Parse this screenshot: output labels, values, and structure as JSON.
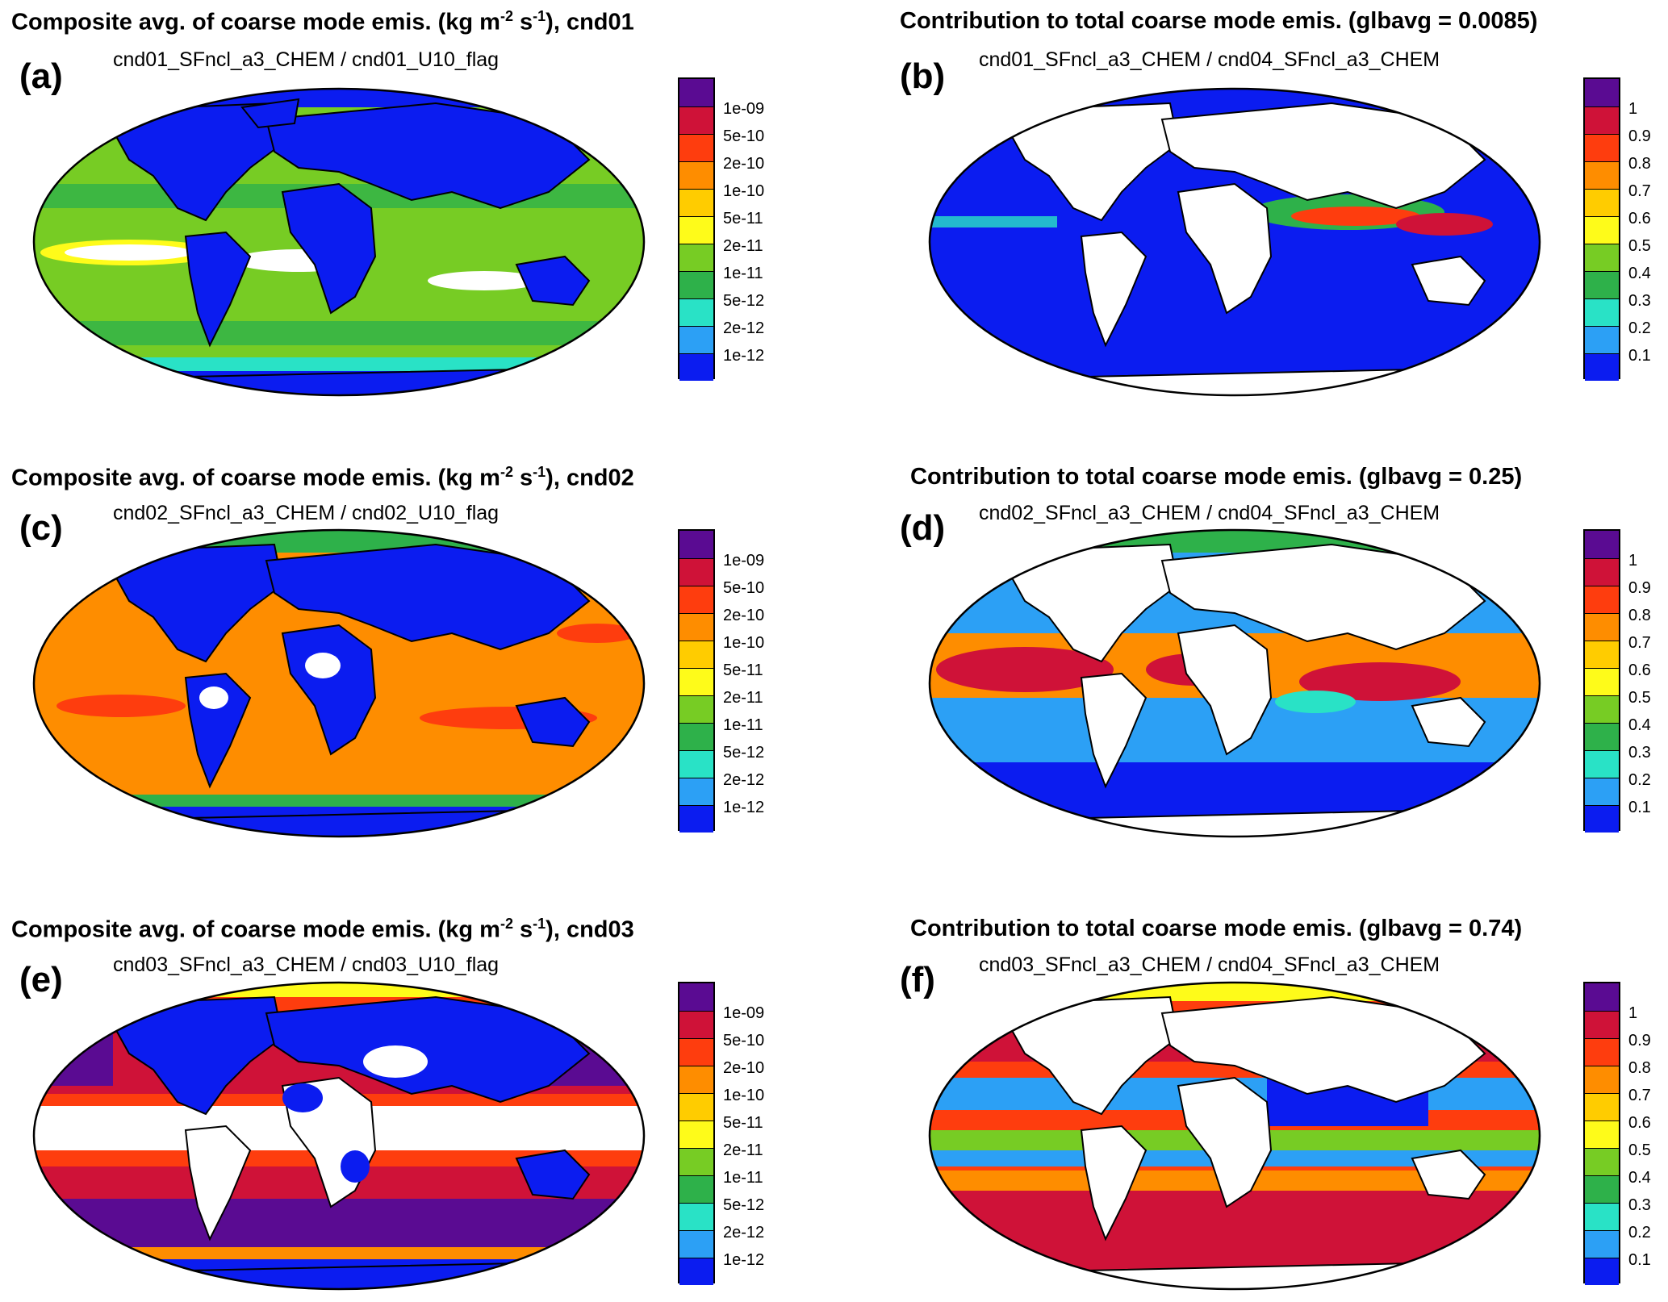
{
  "colors": {
    "ocean_blue": "#0b1cf0",
    "land_blue": "#0b1cf0",
    "light_blue": "#2ca0f5",
    "cyan": "#29e2c6",
    "green_dark": "#2eb14a",
    "green": "#77cc24",
    "yellow": "#fefb1a",
    "gold": "#ffcc00",
    "orange": "#fe8d00",
    "red_orange": "#fe3d0e",
    "red": "#cf1238",
    "purple": "#5a0b92",
    "white": "#ffffff"
  },
  "colorbar_left": {
    "colors": [
      "#0b1cf0",
      "#2ca0f5",
      "#29e2c6",
      "#2eb14a",
      "#77cc24",
      "#fefb1a",
      "#ffcc00",
      "#fe8d00",
      "#fe3d0e",
      "#cf1238",
      "#5a0b92"
    ],
    "labels": [
      "1e-12",
      "2e-12",
      "5e-12",
      "1e-11",
      "2e-11",
      "5e-11",
      "1e-10",
      "2e-10",
      "5e-10",
      "1e-09"
    ]
  },
  "colorbar_right": {
    "colors": [
      "#0b1cf0",
      "#2ca0f5",
      "#29e2c6",
      "#2eb14a",
      "#77cc24",
      "#fefb1a",
      "#ffcc00",
      "#fe8d00",
      "#fe3d0e",
      "#cf1238",
      "#5a0b92"
    ],
    "labels": [
      "0.1",
      "0.2",
      "0.3",
      "0.4",
      "0.5",
      "0.6",
      "0.7",
      "0.8",
      "0.9",
      "1"
    ]
  },
  "panels": [
    {
      "id": "a",
      "label": "(a)",
      "title_prefix": "Composite avg. of coarse mode emis. (kg m",
      "title_sup1": "-2",
      "title_mid": " s",
      "title_sup2": "-1",
      "title_suffix": "), cnd01",
      "subtitle": "cnd01_SFncl_a3_CHEM / cnd01_U10_flag",
      "ocean": "#77cc24",
      "land": "#0b1cf0"
    },
    {
      "id": "b",
      "label": "(b)",
      "title": "Contribution to total coarse mode emis. (glbavg = 0.0085)",
      "subtitle": "cnd01_SFncl_a3_CHEM / cnd04_SFncl_a3_CHEM",
      "ocean": "#0b1cf0",
      "land": "#ffffff"
    },
    {
      "id": "c",
      "label": "(c)",
      "title_prefix": "Composite avg. of coarse mode emis. (kg m",
      "title_sup1": "-2",
      "title_mid": " s",
      "title_sup2": "-1",
      "title_suffix": "), cnd02",
      "subtitle": "cnd02_SFncl_a3_CHEM / cnd02_U10_flag",
      "ocean": "#fe8d00",
      "land": "#0b1cf0"
    },
    {
      "id": "d",
      "label": "(d)",
      "title": "Contribution to total coarse mode emis. (glbavg =  0.25)",
      "subtitle": "cnd02_SFncl_a3_CHEM / cnd04_SFncl_a3_CHEM",
      "ocean": "#2ca0f5",
      "land": "#ffffff"
    },
    {
      "id": "e",
      "label": "(e)",
      "title_prefix": "Composite avg. of coarse mode emis. (kg m",
      "title_sup1": "-2",
      "title_mid": " s",
      "title_sup2": "-1",
      "title_suffix": "), cnd03",
      "subtitle": "cnd03_SFncl_a3_CHEM / cnd03_U10_flag",
      "ocean": "#cf1238",
      "land": "#0b1cf0"
    },
    {
      "id": "f",
      "label": "(f)",
      "title": "Contribution to total coarse mode emis. (glbavg =  0.74)",
      "subtitle": "cnd03_SFncl_a3_CHEM / cnd04_SFncl_a3_CHEM",
      "ocean": "#cf1238",
      "land": "#ffffff"
    }
  ]
}
